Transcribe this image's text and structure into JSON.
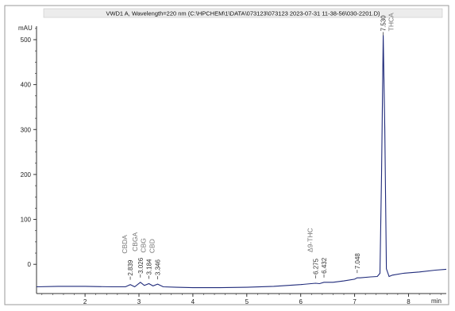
{
  "chart_data": {
    "type": "line",
    "title": "VWD1 A, Wavelength=220 nm (C:\\HPCHEM\\1\\DATA\\073123\\073123 2023-07-31 11-38-56\\030-2201.D)",
    "ylabel": "mAU",
    "xlabel": "min",
    "xlim": [
      1.1,
      8.7
    ],
    "ylim": [
      -65,
      530
    ],
    "x_ticks": [
      2,
      3,
      4,
      5,
      6,
      7,
      8
    ],
    "y_ticks": [
      0,
      100,
      200,
      300,
      400,
      500
    ],
    "x_tick_labels": [
      "2",
      "3",
      "4",
      "5",
      "6",
      "7",
      "8"
    ],
    "y_tick_labels": [
      "0",
      "100",
      "200",
      "300",
      "400",
      "500"
    ],
    "trace_color": "#1f2a7a",
    "grid": false,
    "series": [
      {
        "x": [
          1.1,
          1.5,
          2.0,
          2.5,
          2.75,
          2.839,
          2.92,
          3.026,
          3.1,
          3.184,
          3.26,
          3.346,
          3.45,
          3.7,
          4.0,
          4.5,
          5.0,
          5.5,
          6.0,
          6.275,
          6.35,
          6.432,
          6.6,
          6.8,
          7.0,
          7.048,
          7.1,
          7.3,
          7.42,
          7.47,
          7.5,
          7.53,
          7.56,
          7.59,
          7.64,
          7.7,
          7.9,
          8.2,
          8.5,
          8.7
        ],
        "y": [
          -50,
          -49,
          -49,
          -50,
          -50,
          -45,
          -50,
          -40,
          -47,
          -43,
          -48,
          -44,
          -50,
          -51,
          -52,
          -52,
          -51,
          -49,
          -45,
          -42,
          -43,
          -40,
          -40,
          -37,
          -33,
          -30,
          -30,
          -28,
          -27,
          -20,
          200,
          510,
          300,
          -10,
          -27,
          -24,
          -20,
          -17,
          -13,
          -11
        ]
      }
    ],
    "peaks": [
      {
        "rt": 2.839,
        "rt_label": "2.839",
        "compound": "CBDA"
      },
      {
        "rt": 3.026,
        "rt_label": "3.026",
        "compound": "CBGA"
      },
      {
        "rt": 3.184,
        "rt_label": "3.184",
        "compound": "CBG"
      },
      {
        "rt": 3.346,
        "rt_label": "3.346",
        "compound": "CBD"
      },
      {
        "rt": 6.275,
        "rt_label": "6.275",
        "compound": "Δ9-THC"
      },
      {
        "rt": 6.432,
        "rt_label": "6.432",
        "compound": ""
      },
      {
        "rt": 7.048,
        "rt_label": "7.048",
        "compound": ""
      },
      {
        "rt": 7.53,
        "rt_label": "7.530",
        "compound": "THCA"
      }
    ]
  }
}
